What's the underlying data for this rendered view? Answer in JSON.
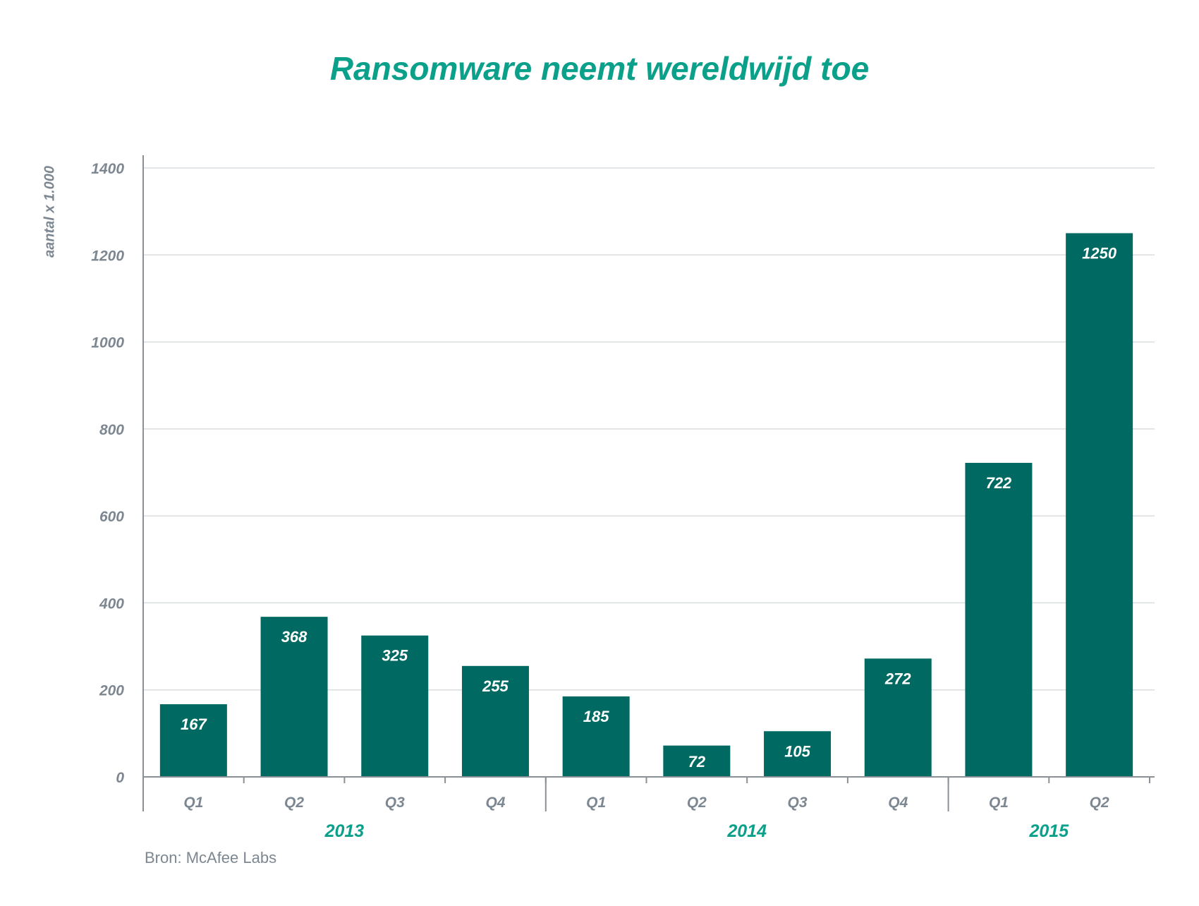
{
  "chart_data": {
    "type": "bar",
    "title": "Ransomware neemt wereldwijd toe",
    "ylabel": "aantal x 1.000",
    "xlabel": "",
    "ylim": [
      0,
      1400
    ],
    "yticks": [
      0,
      200,
      400,
      600,
      800,
      1000,
      1200,
      1400
    ],
    "grid": true,
    "categories": [
      "Q1",
      "Q2",
      "Q3",
      "Q4",
      "Q1",
      "Q2",
      "Q3",
      "Q4",
      "Q1",
      "Q2"
    ],
    "years": [
      {
        "label": "2013",
        "quarters": 4
      },
      {
        "label": "2014",
        "quarters": 4
      },
      {
        "label": "2015",
        "quarters": 2
      }
    ],
    "values": [
      167,
      368,
      325,
      255,
      185,
      72,
      105,
      272,
      722,
      1250
    ],
    "source": "Bron: McAfee Labs",
    "colors": {
      "bar": "#006a62",
      "title": "#0aa08a",
      "year": "#0aa08a",
      "axis_text": "#7d8791",
      "grid": "#dadde0",
      "axis": "#8a9096",
      "value_text": "#ffffff"
    }
  }
}
